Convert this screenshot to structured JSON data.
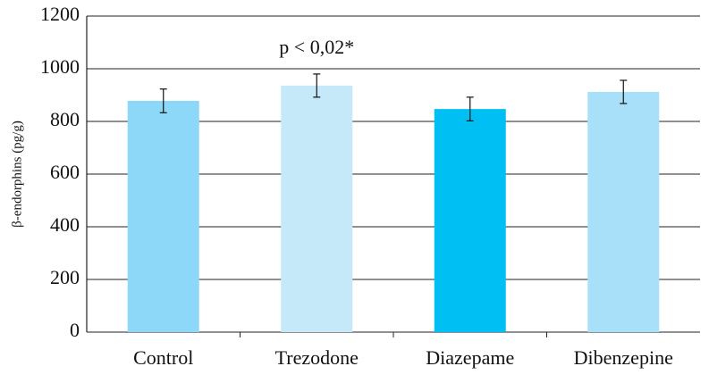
{
  "chart_data": {
    "type": "bar",
    "y_label": "β-endorphins (pg/g)",
    "annotation": "p < 0,02*",
    "categories": [
      "Control",
      "Trezodone",
      "Diazepame",
      "Dibenzepine"
    ],
    "values": [
      878,
      936,
      847,
      912
    ],
    "errors": [
      45,
      44,
      45,
      44
    ],
    "colors": [
      "#8dd8f8",
      "#c6e9f9",
      "#00bff3",
      "#a9e0f9"
    ],
    "ylim": [
      0,
      1200
    ],
    "yticks": [
      0,
      200,
      400,
      600,
      800,
      1000,
      1200
    ],
    "grid": true
  }
}
